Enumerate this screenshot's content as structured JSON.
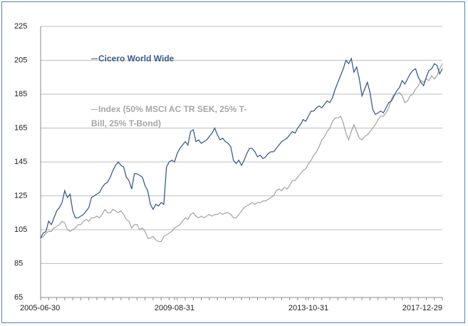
{
  "chart_data": {
    "type": "line",
    "categories": [
      "2005-06-30",
      null,
      null,
      null,
      null,
      null,
      null,
      null,
      null,
      null,
      null,
      null,
      null,
      null,
      null,
      null,
      null,
      null,
      null,
      null,
      null,
      null,
      null,
      null,
      null,
      null,
      null,
      null,
      null,
      null,
      null,
      null,
      null,
      null,
      null,
      null,
      null,
      null,
      null,
      null,
      null,
      null,
      null,
      null,
      null,
      null,
      null,
      null,
      null,
      null,
      "2009-08-31",
      null,
      null,
      null,
      null,
      null,
      null,
      null,
      null,
      null,
      null,
      null,
      null,
      null,
      null,
      null,
      null,
      null,
      null,
      null,
      null,
      null,
      null,
      null,
      null,
      null,
      null,
      null,
      null,
      null,
      null,
      null,
      null,
      null,
      null,
      null,
      null,
      null,
      null,
      null,
      null,
      null,
      null,
      null,
      null,
      null,
      null,
      null,
      null,
      null,
      "2013-10-31",
      null,
      null,
      null,
      null,
      null,
      null,
      null,
      null,
      null,
      null,
      null,
      null,
      null,
      null,
      null,
      null,
      null,
      null,
      null,
      null,
      null,
      null,
      null,
      null,
      null,
      null,
      null,
      null,
      null,
      null,
      null,
      null,
      null,
      null,
      null,
      null,
      null,
      null,
      null,
      null,
      null,
      null,
      null,
      null,
      null,
      null,
      null,
      null,
      null,
      "2017-12-29"
    ],
    "series": [
      {
        "name": "Cicero World Wide",
        "color": "#3b5b8f",
        "values": [
          100,
          103,
          104,
          110,
          108,
          112,
          116,
          118,
          121,
          128,
          124,
          126,
          116,
          112,
          112,
          113,
          114,
          116,
          118,
          124,
          125,
          126,
          127,
          130,
          132,
          133,
          136,
          140,
          143,
          145,
          143,
          142,
          136,
          134,
          129,
          138,
          138,
          137,
          136,
          131,
          128,
          120,
          117,
          120,
          119,
          121,
          120,
          142,
          145,
          146,
          145,
          150,
          153,
          155,
          157,
          155,
          163,
          164,
          157,
          158,
          156,
          157,
          158,
          160,
          162,
          165,
          161,
          158,
          159,
          157,
          156,
          154,
          146,
          144,
          146,
          143,
          146,
          150,
          153,
          153,
          151,
          148,
          149,
          147,
          148,
          150,
          151,
          151,
          153,
          155,
          157,
          158,
          159,
          161,
          163,
          162,
          165,
          167,
          170,
          169,
          172,
          175,
          175,
          177,
          178,
          177,
          179,
          181,
          180,
          183,
          188,
          192,
          196,
          200,
          205,
          203,
          206,
          198,
          201,
          194,
          184,
          188,
          192,
          186,
          176,
          173,
          174,
          175,
          174,
          177,
          180,
          181,
          184,
          187,
          189,
          193,
          191,
          194,
          197,
          199,
          200,
          195,
          192,
          190,
          195,
          199,
          200,
          203,
          202,
          197,
          200
        ]
      },
      {
        "name": "Index (50% MSCI AC TR SEK, 25% T-Bill, 25% T-Bond)",
        "color": "#a6a6a6",
        "values": [
          100,
          101,
          103,
          104,
          104,
          106,
          107,
          108,
          110,
          109,
          105,
          104,
          105,
          106,
          108,
          108,
          110,
          111,
          110,
          112,
          112,
          113,
          112,
          114,
          117,
          115,
          115,
          117,
          116,
          115,
          116,
          114,
          111,
          110,
          106,
          108,
          108,
          105,
          106,
          104,
          100,
          100,
          101,
          99,
          98,
          98,
          101,
          102,
          103,
          104,
          106,
          107,
          108,
          110,
          112,
          111,
          114,
          115,
          113,
          112,
          113,
          112,
          113,
          114,
          113,
          114,
          114,
          115,
          114,
          115,
          115,
          114,
          112,
          112,
          114,
          116,
          118,
          119,
          120,
          121,
          120,
          121,
          121,
          122,
          122,
          123,
          124,
          125,
          128,
          129,
          128,
          130,
          129,
          131,
          134,
          134,
          136,
          138,
          140,
          141,
          144,
          146,
          149,
          151,
          154,
          158,
          160,
          163,
          165,
          169,
          171,
          171,
          172,
          168,
          162,
          158,
          163,
          167,
          163,
          159,
          158,
          160,
          161,
          163,
          165,
          167,
          170,
          172,
          172,
          174,
          177,
          182,
          185,
          185,
          186,
          184,
          180,
          181,
          184,
          185,
          188,
          190,
          193,
          192,
          194,
          193,
          196,
          194,
          196,
          200,
          203
        ]
      }
    ],
    "ylim": [
      65,
      225
    ],
    "yticks": [
      65,
      85,
      105,
      125,
      145,
      165,
      185,
      205,
      225
    ],
    "grid": true
  }
}
